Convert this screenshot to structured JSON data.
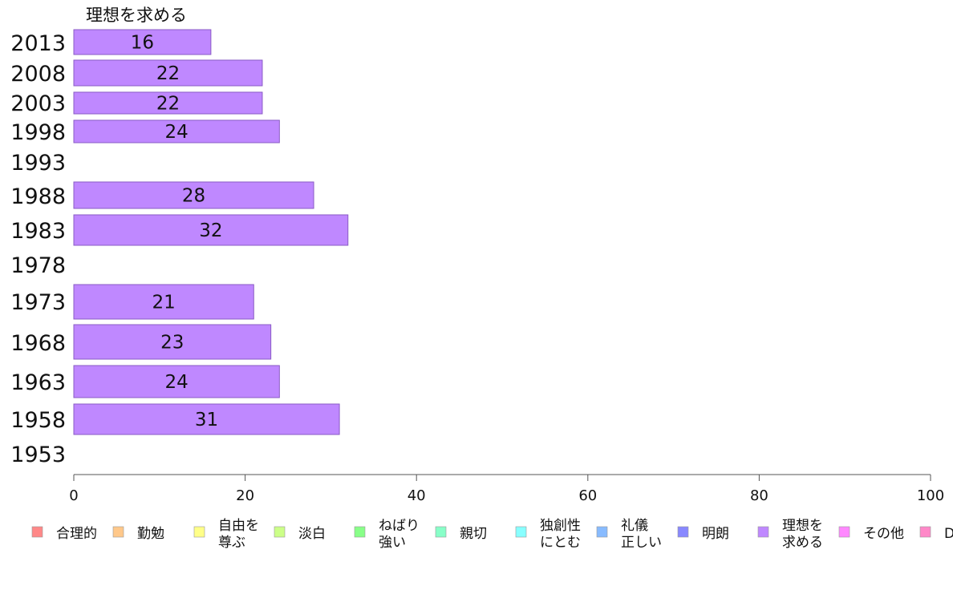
{
  "chart_data": {
    "type": "bar",
    "orientation": "horizontal",
    "title": "",
    "series_title": "理想を求める",
    "categories": [
      "2013",
      "2008",
      "2003",
      "1998",
      "1993",
      "1988",
      "1983",
      "1978",
      "1973",
      "1968",
      "1963",
      "1958",
      "1953"
    ],
    "series": [
      {
        "name": "理想を求める",
        "color": "#BF88FF",
        "values": [
          16,
          22,
          22,
          24,
          null,
          28,
          32,
          null,
          21,
          23,
          24,
          31,
          null
        ]
      }
    ],
    "xlim": [
      0,
      100
    ],
    "xticks": [
      0,
      20,
      40,
      60,
      80,
      100
    ],
    "xlabel": "",
    "ylabel": "",
    "grid": false,
    "legend_position": "bottom",
    "legend": [
      {
        "label": "合理的",
        "color": "#FF8888"
      },
      {
        "label": "勤勉",
        "color": "#FFC88A"
      },
      {
        "label": "自由を\n尊ぶ",
        "color": "#FFFF88"
      },
      {
        "label": "淡白",
        "color": "#CCFF88"
      },
      {
        "label": "ねばり\n強い",
        "color": "#88FF88"
      },
      {
        "label": "親切",
        "color": "#88FFC8"
      },
      {
        "label": "独創性\nにとむ",
        "color": "#88FFFF"
      },
      {
        "label": "礼儀\n正しい",
        "color": "#88BBFF"
      },
      {
        "label": "明朗",
        "color": "#8888FF"
      },
      {
        "label": "理想を\n求める",
        "color": "#BF88FF"
      },
      {
        "label": "その他",
        "color": "#FF88FF"
      },
      {
        "label": "D",
        "color": "#FF88C8"
      }
    ]
  }
}
